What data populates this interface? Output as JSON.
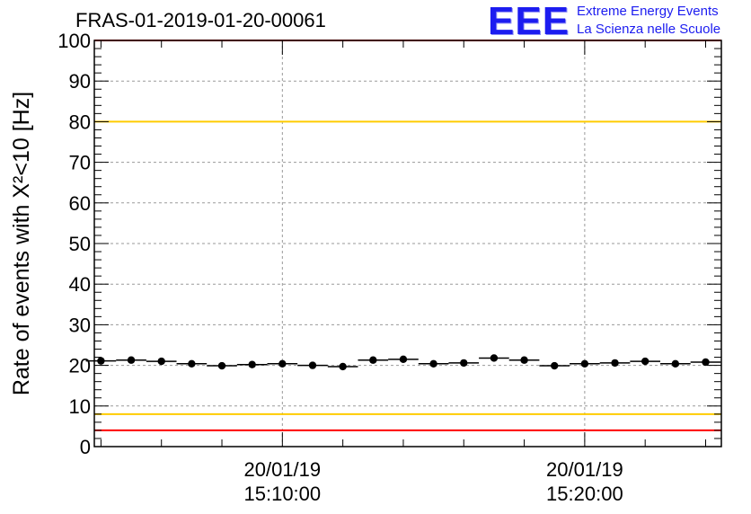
{
  "header": {
    "run_label": "FRAS-01-2019-01-20-00061",
    "logo_mark": "EEE",
    "logo_line1": "Extreme Energy Events",
    "logo_line2": "La Scienza nelle Scuole"
  },
  "chart_data": {
    "type": "scatter",
    "title": "FRAS-01-2019-01-20-00061",
    "ylabel": "Rate of events with X²<10 [Hz]",
    "ylim": [
      0,
      100
    ],
    "y_ticks": [
      "0",
      "10",
      "20",
      "30",
      "40",
      "50",
      "60",
      "70",
      "80",
      "90",
      "100"
    ],
    "x_unit": "minutes",
    "xlim": [
      3.78,
      24.52
    ],
    "x_tick_labels": [
      {
        "x": 10,
        "date": "20/01/19",
        "time": "15:10:00"
      },
      {
        "x": 20,
        "date": "20/01/19",
        "time": "15:20:00"
      }
    ],
    "grid": true,
    "reference_lines": [
      {
        "y": 100,
        "color": "#ff0000"
      },
      {
        "y": 80,
        "color": "#ffcc00"
      },
      {
        "y": 8,
        "color": "#ffcc00"
      },
      {
        "y": 4,
        "color": "#ff0000"
      }
    ],
    "series": [
      {
        "color": "#000000",
        "x": [
          4.0,
          5.0,
          6.0,
          7.0,
          8.0,
          9.0,
          10.0,
          11.0,
          12.0,
          13.0,
          14.0,
          15.0,
          16.0,
          17.0,
          18.0,
          19.0,
          20.0,
          21.0,
          22.0,
          23.0,
          24.0
        ],
        "x_half_width": 0.5,
        "y": [
          21.1,
          21.3,
          21.0,
          20.4,
          19.9,
          20.2,
          20.4,
          20.0,
          19.7,
          21.3,
          21.5,
          20.4,
          20.6,
          21.8,
          21.3,
          19.9,
          20.4,
          20.6,
          21.0,
          20.4,
          20.8
        ],
        "y_err": [
          0.6,
          0.6,
          0.6,
          0.6,
          0.6,
          0.6,
          0.6,
          0.6,
          0.6,
          0.6,
          0.6,
          0.6,
          0.6,
          0.6,
          0.6,
          0.6,
          0.6,
          0.6,
          0.6,
          0.6,
          0.6
        ]
      }
    ]
  }
}
